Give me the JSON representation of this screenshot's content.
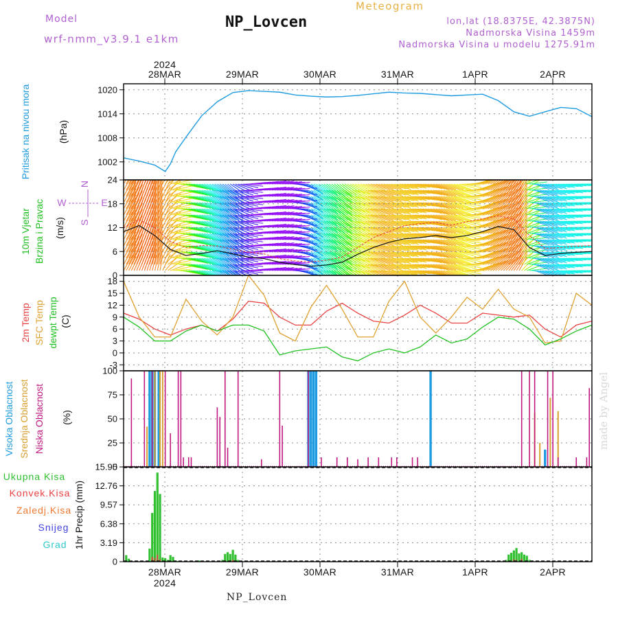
{
  "header": {
    "model_label": "Model",
    "model_name": "wrf-nmm_v3.9.1 e1km",
    "station": "NP_Lovcen",
    "meteogram": "Meteogram",
    "lonlat": "lon,lat (18.8375E, 42.3875N)",
    "elevation": "Nadmorska Visina 1459m",
    "model_elevation": "Nadmorska Visina u modelu 1275.91m"
  },
  "footer": {
    "station": "NP_Lovcen",
    "credit": "made by Angel"
  },
  "colors": {
    "pressure": "#1e9be0",
    "temp2m": "#e84040",
    "sfc": "#e0a030",
    "dewpt": "#20c020",
    "high_cloud": "#1e9be0",
    "mid_cloud": "#d8a030",
    "low_cloud": "#c01880",
    "total_precip": "#30c030",
    "conv_precip": "#e84040",
    "frozen": "#f07830",
    "snow": "#4040e0",
    "hail": "#30c8c8",
    "axis_label": "#b060d0"
  },
  "chart_data": [
    {
      "type": "line",
      "id": "pressure",
      "year_label": "2024",
      "x_tick_labels": [
        "28MAR",
        "29MAR",
        "30MAR",
        "31MAR",
        "1APR",
        "2APR"
      ],
      "ylabel_name": "Pritisak na nivou mora",
      "ylabel_unit": "(hPa)",
      "ylim": [
        997.5,
        1021.5
      ],
      "y_ticks": [
        1002,
        1008,
        1014,
        1020
      ],
      "x_hours": [
        0,
        6,
        12,
        16,
        18,
        20,
        24,
        30,
        36,
        42,
        48,
        54,
        60,
        66,
        72,
        78,
        84,
        90,
        96,
        102,
        108,
        114,
        120,
        126,
        132,
        138,
        144,
        150,
        156,
        162,
        168,
        174,
        180
      ],
      "series": [
        {
          "values": [
            1003,
            1002.2,
            1001.2,
            999.6,
            1001.5,
            1004.5,
            1008.2,
            1013.5,
            1017,
            1019.3,
            1019.8,
            1019.6,
            1019.4,
            1018.7,
            1018.4,
            1018.2,
            1018.3,
            1018.6,
            1019,
            1019.4,
            1019.2,
            1019.1,
            1018.8,
            1018.5,
            1018.7,
            1018.9,
            1017.3,
            1014.5,
            1013.4,
            1014.5,
            1015.6,
            1015.3,
            1013.3
          ]
        }
      ]
    },
    {
      "type": "line",
      "id": "wind",
      "ylabel_name": "10m Vjetar",
      "ylabel_name2": "Brzina i Pravac",
      "ylabel_unit": "(m/s)",
      "compass": [
        "N",
        "W",
        "E",
        "S"
      ],
      "ylim": [
        0,
        24
      ],
      "y_ticks": [
        0,
        6,
        12,
        18,
        24
      ],
      "x_hours": [
        0,
        6,
        12,
        18,
        24,
        30,
        36,
        42,
        48,
        54,
        60,
        66,
        72,
        78,
        84,
        90,
        96,
        102,
        108,
        114,
        120,
        126,
        132,
        138,
        144,
        150,
        156,
        162,
        168,
        174,
        180
      ],
      "series": [
        {
          "values": [
            11,
            12.5,
            10,
            6.5,
            5,
            5.5,
            6.2,
            5.4,
            4.6,
            4.2,
            3.3,
            2.7,
            2.3,
            2.6,
            3.3,
            5.3,
            7,
            8.3,
            9.2,
            9.5,
            10,
            9.5,
            10,
            11,
            12.3,
            11.5,
            7,
            5,
            5.5,
            5.8,
            6
          ]
        },
        {
          "values": [
            12,
            14,
            12,
            8.5,
            7,
            7.5,
            7.4,
            6.6,
            5.8,
            5.4,
            4.2,
            3.6,
            3.4,
            3.8,
            4.6,
            7,
            9.5,
            11,
            12.5,
            13,
            13.3,
            12.6,
            13.5,
            14.2,
            15,
            14.2,
            10,
            6.8,
            7,
            7.3,
            7.5
          ]
        }
      ]
    },
    {
      "type": "line",
      "id": "temperature",
      "ylabel_names": [
        "2m Temp",
        "SFC Temp",
        "dewpt Temp"
      ],
      "ylabel_unit": "(C)",
      "ylim": [
        -4.5,
        19.5
      ],
      "y_ticks": [
        -3,
        0,
        3,
        6,
        9,
        12,
        15,
        18
      ],
      "x_hours": [
        0,
        6,
        12,
        18,
        24,
        30,
        36,
        42,
        48,
        54,
        60,
        66,
        72,
        78,
        84,
        90,
        96,
        102,
        108,
        114,
        120,
        126,
        132,
        138,
        144,
        150,
        156,
        162,
        168,
        174,
        180
      ],
      "series": [
        {
          "name": "2m Temp",
          "values": [
            10,
            8.5,
            6,
            4.5,
            6,
            7,
            5.5,
            8.5,
            13,
            12.5,
            9,
            7,
            7,
            10.5,
            12.5,
            10,
            8,
            7.5,
            9.5,
            12,
            10,
            7.5,
            7.5,
            10,
            9.5,
            9,
            9.5,
            6,
            4,
            7,
            8
          ]
        },
        {
          "name": "SFC Temp",
          "values": [
            18,
            9,
            4,
            4,
            13.5,
            8,
            4.5,
            9,
            19.5,
            14.5,
            5,
            3,
            11.5,
            17,
            11,
            4,
            4,
            13,
            18,
            9,
            5,
            9,
            14,
            11,
            16,
            11,
            9,
            2.5,
            3,
            15,
            12
          ]
        },
        {
          "name": "dewpt Temp",
          "values": [
            9,
            6.5,
            3,
            3,
            5.5,
            7,
            5.5,
            7,
            7,
            5.5,
            -0.5,
            0.5,
            1,
            1.5,
            -1,
            -2,
            0,
            1,
            0,
            1.5,
            4.5,
            2.5,
            3.5,
            6.5,
            9,
            8.5,
            6,
            2,
            3.5,
            5.5,
            7
          ]
        }
      ]
    },
    {
      "type": "bar",
      "id": "clouds",
      "ylabel_names": [
        "Visoka Oblacnost",
        "Srednja Oblacnost",
        "Niska Oblacnost"
      ],
      "ylabel_unit": "(%)",
      "ylim": [
        0,
        100
      ],
      "y_ticks": [
        0,
        25,
        50,
        75,
        100
      ],
      "series": [
        {
          "name": "Visoka Oblacnost",
          "x_hours": [
            10,
            11,
            12,
            13.5,
            71,
            72,
            73,
            74,
            118,
            162
          ],
          "values": [
            100,
            100,
            100,
            100,
            100,
            100,
            100,
            100,
            100,
            18
          ]
        },
        {
          "name": "Srednja Oblacnost",
          "x_hours": [
            9,
            12,
            14,
            15,
            158,
            160,
            164,
            167
          ],
          "values": [
            42,
            100,
            100,
            100,
            56,
            25,
            72,
            58
          ]
        },
        {
          "name": "Niska Oblacnost",
          "x_hours": [
            3,
            8,
            11,
            16,
            18,
            21,
            22,
            23,
            25,
            26,
            36,
            37,
            39,
            40,
            44,
            53,
            60,
            61,
            71,
            76,
            82,
            86,
            90,
            94,
            98,
            103,
            105,
            111,
            113,
            153,
            156,
            158,
            163,
            165,
            167,
            174,
            178,
            179
          ],
          "values": [
            92,
            100,
            100,
            100,
            35,
            100,
            100,
            10,
            10,
            10,
            62,
            52,
            100,
            20,
            100,
            8,
            100,
            43,
            100,
            10,
            10,
            10,
            8,
            10,
            10,
            10,
            10,
            10,
            10,
            100,
            100,
            100,
            100,
            100,
            10,
            10,
            10,
            82
          ]
        }
      ]
    },
    {
      "type": "bar",
      "id": "precipitation",
      "ylabel_names": [
        "Ukupna Kisa",
        "Konvek.Kisa",
        "Zaledj.Kisa",
        "Snijeg",
        "Grad"
      ],
      "ylabel_unit": "1hr Precip (mm)",
      "ylim": [
        0,
        15.95
      ],
      "y_ticks": [
        0,
        3.19,
        6.38,
        9.57,
        12.76,
        15.95
      ],
      "x_tick_labels_bottom": [
        "28MAR",
        "29MAR",
        "30MAR",
        "31MAR",
        "1APR",
        "2APR"
      ],
      "year_label_bottom": "2024",
      "series": [
        {
          "name": "Ukupna Kisa",
          "x_hours": [
            1,
            2,
            10,
            11,
            12,
            13,
            14,
            15,
            16,
            17,
            18,
            19,
            20,
            21,
            22,
            29,
            38,
            39,
            40,
            41,
            42,
            43,
            44,
            67,
            71,
            73,
            75,
            91,
            147,
            148,
            149,
            150,
            151,
            152,
            153,
            154,
            155,
            156,
            157
          ],
          "values": [
            1.1,
            0.5,
            2.2,
            8.2,
            11.9,
            15.0,
            11.4,
            0.7,
            0.6,
            0.3,
            1.1,
            0.8,
            0.2,
            0.1,
            0.1,
            0.2,
            0.3,
            1.3,
            1.6,
            1.3,
            2.0,
            1.2,
            0.3,
            0.1,
            0.1,
            0.1,
            0.1,
            0.1,
            0.3,
            1.2,
            1.5,
            1.9,
            2.3,
            1.4,
            1.6,
            1.2,
            1.0,
            0.3,
            0.2
          ]
        },
        {
          "name": "Konvek.Kisa",
          "x_hours": [
            11,
            12,
            13,
            14,
            42,
            150,
            151,
            153
          ],
          "values": [
            0.8,
            0.6,
            1.2,
            0.4,
            0.3,
            0.4,
            0.3,
            0.5
          ]
        }
      ]
    }
  ]
}
